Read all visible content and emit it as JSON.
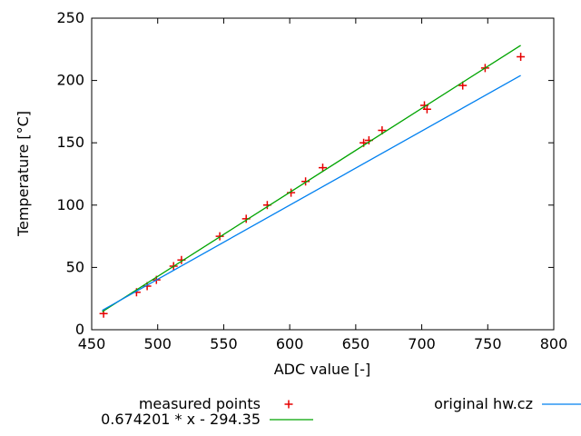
{
  "chart_data": {
    "type": "scatter",
    "title": "",
    "xlabel": "ADC value [-]",
    "ylabel": "Temperature [°C]",
    "xlim": [
      450,
      800
    ],
    "ylim": [
      0,
      250
    ],
    "xticks": [
      450,
      500,
      550,
      600,
      650,
      700,
      750,
      800
    ],
    "yticks": [
      0,
      50,
      100,
      150,
      200,
      250
    ],
    "grid": false,
    "legend_position": "below-plot",
    "series": [
      {
        "name": "measured points",
        "style": "points",
        "marker": "plus",
        "color": "#e60000",
        "points": [
          [
            459,
            13
          ],
          [
            484,
            30
          ],
          [
            492,
            35
          ],
          [
            499,
            40
          ],
          [
            512,
            51
          ],
          [
            518,
            56
          ],
          [
            547,
            75
          ],
          [
            567,
            89
          ],
          [
            583,
            100
          ],
          [
            601,
            110
          ],
          [
            612,
            119
          ],
          [
            625,
            130
          ],
          [
            656,
            150
          ],
          [
            660,
            152
          ],
          [
            670,
            160
          ],
          [
            702,
            180
          ],
          [
            704,
            177
          ],
          [
            731,
            196
          ],
          [
            748,
            210
          ],
          [
            775,
            219
          ]
        ]
      },
      {
        "name": "0.674201 * x - 294.35",
        "style": "line",
        "marker": "line",
        "color": "#00a400",
        "points": [
          [
            458,
            14.4
          ],
          [
            775,
            228.2
          ]
        ]
      },
      {
        "name": "original hw.cz",
        "style": "line",
        "marker": "line",
        "color": "#0080f0",
        "points": [
          [
            458,
            15.5
          ],
          [
            775,
            204
          ]
        ]
      }
    ]
  }
}
